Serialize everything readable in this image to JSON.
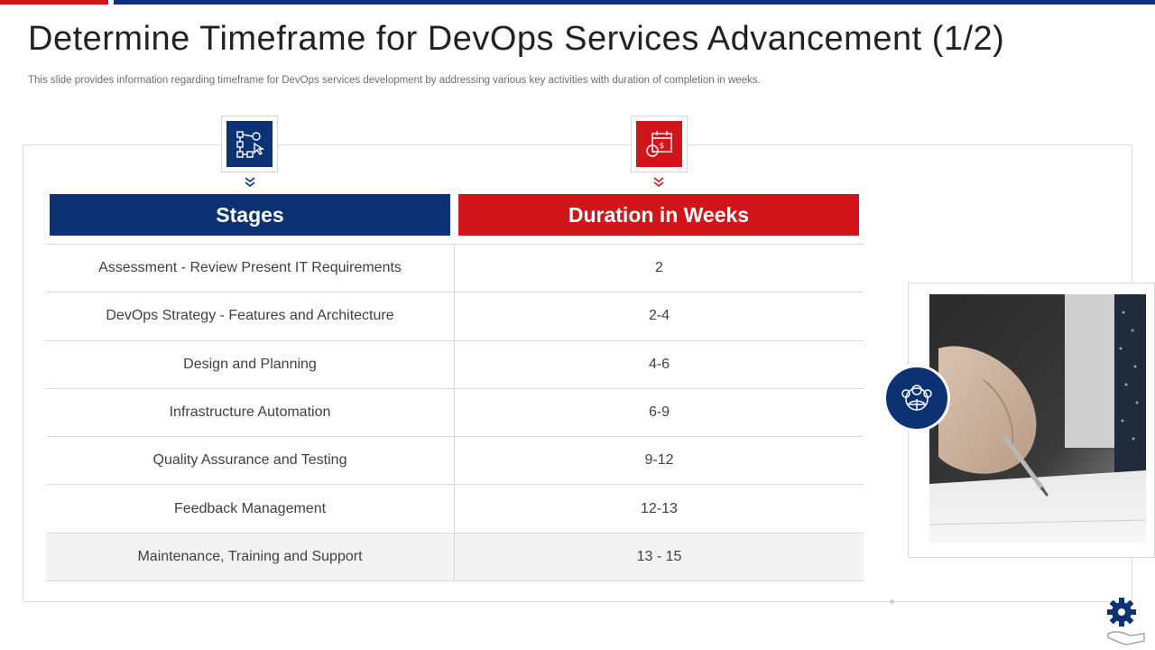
{
  "slide": {
    "title": "Determine Timeframe for DevOps Services Advancement (1/2)",
    "subtitle": "This slide provides information regarding timeframe for DevOps services development by addressing various key activities with duration of completion in weeks."
  },
  "table": {
    "headers": {
      "stages": "Stages",
      "duration": "Duration in Weeks"
    },
    "rows": [
      {
        "stage": "Assessment  - Review Present IT Requirements",
        "duration": "2"
      },
      {
        "stage": "DevOps Strategy - Features and Architecture",
        "duration": "2-4"
      },
      {
        "stage": "Design and Planning",
        "duration": "4-6"
      },
      {
        "stage": "Infrastructure  Automation",
        "duration": "6-9"
      },
      {
        "stage": "Quality Assurance and Testing",
        "duration": "9-12"
      },
      {
        "stage": "Feedback Management",
        "duration": "12-13"
      },
      {
        "stage": "Maintenance, Training and Support",
        "duration": "13 - 15"
      }
    ]
  },
  "icons": {
    "stages": "flowchart-icon",
    "duration": "calendar-money-icon",
    "team": "team-icon",
    "logo": "gear-hand-icon"
  },
  "colors": {
    "brand_blue": "#0c3273",
    "brand_red": "#d0161b"
  }
}
